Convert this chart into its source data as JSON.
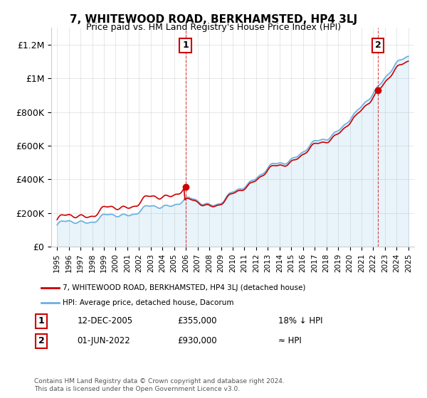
{
  "title": "7, WHITEWOOD ROAD, BERKHAMSTED, HP4 3LJ",
  "subtitle": "Price paid vs. HM Land Registry's House Price Index (HPI)",
  "ylabel_ticks": [
    "£0",
    "£200K",
    "£400K",
    "£600K",
    "£800K",
    "£1M",
    "£1.2M"
  ],
  "ytick_values": [
    0,
    200000,
    400000,
    600000,
    800000,
    1000000,
    1200000
  ],
  "ylim": [
    0,
    1300000
  ],
  "hpi_color": "#6ab0e0",
  "price_color": "#cc0000",
  "marker1_date_idx": 11,
  "marker2_date_idx": 27,
  "sale1_label": "12-DEC-2005",
  "sale1_price": "£355,000",
  "sale1_hpi": "18% ↓ HPI",
  "sale2_label": "01-JUN-2022",
  "sale2_price": "£930,000",
  "sale2_hpi": "≈ HPI",
  "legend_label1": "7, WHITEWOOD ROAD, BERKHAMSTED, HP4 3LJ (detached house)",
  "legend_label2": "HPI: Average price, detached house, Dacorum",
  "footer": "Contains HM Land Registry data © Crown copyright and database right 2024.\nThis data is licensed under the Open Government Licence v3.0.",
  "background_color": "#ffffff",
  "grid_color": "#dddddd"
}
